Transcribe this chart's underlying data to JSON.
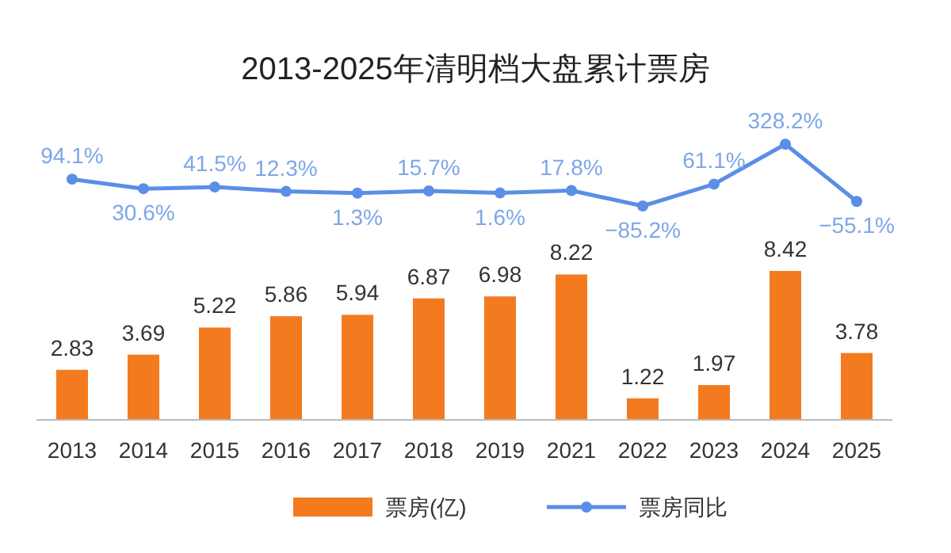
{
  "chart_data": [
    {
      "type": "line",
      "title": "2013-2025年清明档大盘累计票房",
      "categories": [
        "2013",
        "2014",
        "2015",
        "2016",
        "2017",
        "2018",
        "2019",
        "2021",
        "2022",
        "2023",
        "2024",
        "2025"
      ],
      "tick_labels": false,
      "legend": "bottom",
      "marker": "circle",
      "series": [
        {
          "name": "票房同比",
          "color": "#5b8ee6",
          "values": [
            94.1,
            30.6,
            41.5,
            12.3,
            1.3,
            15.7,
            1.6,
            17.8,
            -85.2,
            61.1,
            328.2,
            -55.1
          ],
          "value_labels": [
            "94.1%",
            "30.6%",
            "41.5%",
            "12.3%",
            "1.3%",
            "15.7%",
            "1.6%",
            "17.8%",
            "−85.2%",
            "61.1%",
            "328.2%",
            "−55.1%"
          ]
        }
      ]
    },
    {
      "type": "bar",
      "categories": [
        "2013",
        "2014",
        "2015",
        "2016",
        "2017",
        "2018",
        "2019",
        "2021",
        "2022",
        "2023",
        "2024",
        "2025"
      ],
      "tick_labels": "x",
      "legend": "bottom",
      "data_labels": true,
      "series": [
        {
          "name": "票房(亿)",
          "color": "#f47a1f",
          "values": [
            2.83,
            3.69,
            5.22,
            5.86,
            5.94,
            6.87,
            6.98,
            8.22,
            1.22,
            1.97,
            8.42,
            3.78
          ]
        }
      ]
    }
  ]
}
